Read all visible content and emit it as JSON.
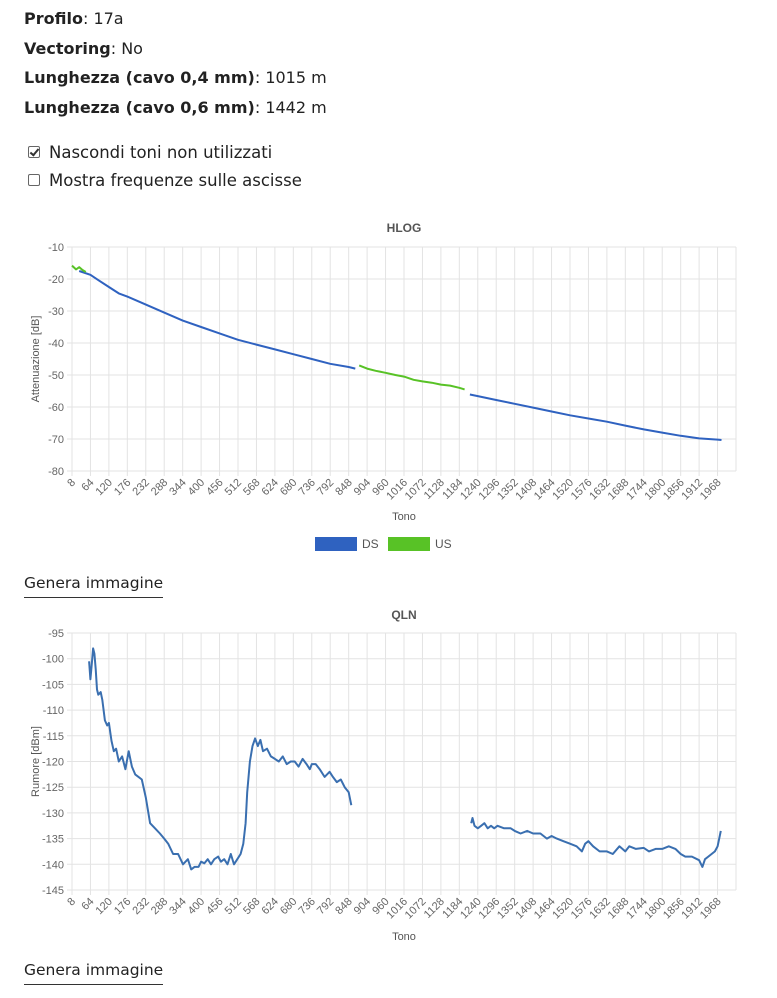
{
  "info": [
    {
      "label": "Profilo",
      "value": "17a"
    },
    {
      "label": "Vectoring",
      "value": "No"
    },
    {
      "label": "Lunghezza (cavo 0,4 mm)",
      "value": "1015 m"
    },
    {
      "label": "Lunghezza (cavo 0,6 mm)",
      "value": "1442 m"
    }
  ],
  "options": {
    "hide_unused": {
      "label": "Nascondi toni non utilizzati",
      "checked": true
    },
    "show_freq": {
      "label": "Mostra frequenze sulle ascisse",
      "checked": false
    }
  },
  "generate_label": "Genera immagine",
  "colors": {
    "ds": "#2f62c0",
    "us": "#58c226",
    "qln": "#3a6fb0",
    "grid": "#e3e3e3"
  },
  "chart_data": [
    {
      "type": "line",
      "title": "HLOG",
      "xlabel": "Tono",
      "ylabel": "Attenuazione [dB]",
      "xlim": [
        8,
        2024
      ],
      "ylim": [
        -80,
        -10
      ],
      "yticks": [
        -10,
        -20,
        -30,
        -40,
        -50,
        -60,
        -70,
        -80
      ],
      "xticks": [
        8,
        64,
        120,
        176,
        232,
        288,
        344,
        400,
        456,
        512,
        568,
        624,
        680,
        736,
        792,
        848,
        904,
        960,
        1016,
        1072,
        1128,
        1184,
        1240,
        1296,
        1352,
        1408,
        1464,
        1520,
        1576,
        1632,
        1688,
        1744,
        1800,
        1856,
        1912,
        1968
      ],
      "grid": true,
      "legend": "bottom-center",
      "series": [
        {
          "name": "DS",
          "color": "#2f62c0",
          "x": [
            30,
            64,
            90,
            120,
            150,
            176,
            232,
            288,
            344,
            400,
            456,
            512,
            568,
            624,
            680,
            736,
            792,
            848,
            868
          ],
          "y": [
            -17.5,
            -18.7,
            -20.5,
            -22.5,
            -24.5,
            -25.5,
            -28,
            -30.5,
            -33,
            -35,
            -37,
            -39,
            -40.5,
            -42,
            -43.5,
            -45,
            -46.5,
            -47.5,
            -48
          ]
        },
        {
          "name": "US",
          "color": "#58c226",
          "x": [
            8,
            20,
            30,
            40,
            50
          ],
          "y": [
            -15.8,
            -17,
            -16.3,
            -17.2,
            -17.8
          ]
        },
        {
          "name": "US",
          "color": "#58c226",
          "x": [
            880,
            904,
            930,
            960,
            990,
            1016,
            1045,
            1072,
            1100,
            1128,
            1156,
            1184,
            1200
          ],
          "y": [
            -47,
            -48,
            -48.7,
            -49.3,
            -50,
            -50.5,
            -51.5,
            -52,
            -52.4,
            -53,
            -53.3,
            -54,
            -54.5
          ]
        },
        {
          "name": "DS",
          "color": "#2f62c0",
          "x": [
            1216,
            1240,
            1296,
            1352,
            1408,
            1464,
            1520,
            1576,
            1632,
            1688,
            1744,
            1800,
            1856,
            1912,
            1968,
            1980
          ],
          "y": [
            -56.1,
            -56.6,
            -57.8,
            -59,
            -60.2,
            -61.4,
            -62.6,
            -63.6,
            -64.6,
            -65.8,
            -67,
            -68,
            -69,
            -69.8,
            -70.2,
            -70.3
          ]
        }
      ]
    },
    {
      "type": "line",
      "title": "QLN",
      "xlabel": "Tono",
      "ylabel": "Rumore [dBm]",
      "xlim": [
        8,
        2024
      ],
      "ylim": [
        -145,
        -95
      ],
      "yticks": [
        -95,
        -100,
        -105,
        -110,
        -115,
        -120,
        -125,
        -130,
        -135,
        -140,
        -145
      ],
      "xticks": [
        8,
        64,
        120,
        176,
        232,
        288,
        344,
        400,
        456,
        512,
        568,
        624,
        680,
        736,
        792,
        848,
        904,
        960,
        1016,
        1072,
        1128,
        1184,
        1240,
        1296,
        1352,
        1408,
        1464,
        1520,
        1576,
        1632,
        1688,
        1744,
        1800,
        1856,
        1912,
        1968
      ],
      "grid": true,
      "series": [
        {
          "name": "",
          "color": "#3a6fb0",
          "x": [
            60,
            64,
            68,
            72,
            76,
            80,
            84,
            88,
            95,
            100,
            108,
            115,
            120,
            128,
            135,
            142,
            150,
            160,
            170,
            180,
            190,
            200,
            210,
            220,
            232,
            245,
            260,
            275,
            288,
            300,
            315,
            330,
            345,
            360,
            370,
            380,
            392,
            400,
            410,
            420,
            430,
            440,
            452,
            460,
            470,
            480,
            490,
            500,
            510,
            520,
            528,
            535,
            540,
            548,
            556,
            564,
            572,
            580,
            588,
            600,
            612,
            624,
            636,
            648,
            660,
            672,
            684,
            696,
            708,
            720,
            730,
            736,
            748,
            760,
            775,
            790,
            800,
            812,
            824,
            836,
            848,
            856
          ],
          "y": [
            -100.5,
            -104,
            -101,
            -98,
            -99,
            -102,
            -106,
            -107,
            -106.5,
            -108,
            -112,
            -113,
            -112.5,
            -116,
            -118,
            -117.5,
            -120,
            -119,
            -121.5,
            -118,
            -121,
            -122.5,
            -123,
            -123.5,
            -127,
            -132,
            -133,
            -134,
            -135,
            -136,
            -138,
            -138,
            -140,
            -139,
            -141,
            -140.5,
            -140.5,
            -139.5,
            -139.8,
            -139,
            -140,
            -139,
            -138.5,
            -139.5,
            -139,
            -140,
            -138,
            -140,
            -139,
            -138,
            -136,
            -132,
            -126,
            -120,
            -117,
            -115.5,
            -117,
            -115.8,
            -118,
            -117.5,
            -119,
            -119.5,
            -120,
            -119,
            -120.5,
            -120,
            -120,
            -121,
            -119.5,
            -120.5,
            -121.5,
            -120.5,
            -120.5,
            -121.5,
            -123,
            -122,
            -123,
            -124,
            -123.5,
            -125,
            -126,
            -128.5
          ]
        },
        {
          "name": "",
          "color": "#3a6fb0",
          "x": [
            1220,
            1224,
            1230,
            1240,
            1250,
            1260,
            1270,
            1280,
            1290,
            1300,
            1320,
            1340,
            1352,
            1370,
            1390,
            1408,
            1430,
            1450,
            1464,
            1480,
            1500,
            1520,
            1540,
            1556,
            1566,
            1576,
            1590,
            1610,
            1632,
            1650,
            1670,
            1688,
            1700,
            1720,
            1744,
            1760,
            1780,
            1800,
            1820,
            1840,
            1856,
            1870,
            1890,
            1912,
            1922,
            1930,
            1940,
            1950,
            1960,
            1968,
            1978
          ],
          "y": [
            -132,
            -131,
            -132.5,
            -133,
            -132.5,
            -132,
            -133,
            -132.5,
            -133,
            -132.5,
            -133,
            -133,
            -133.5,
            -134,
            -133.5,
            -134,
            -134,
            -135,
            -134.5,
            -135,
            -135.5,
            -136,
            -136.5,
            -137.5,
            -136,
            -135.5,
            -136.5,
            -137.5,
            -137.5,
            -138,
            -136.5,
            -137.5,
            -136.5,
            -137,
            -136.8,
            -137.5,
            -137,
            -137,
            -136.5,
            -137,
            -138,
            -138.5,
            -138.5,
            -139.2,
            -140.5,
            -139,
            -138.5,
            -138,
            -137.5,
            -136.5,
            -133.5
          ]
        }
      ]
    }
  ]
}
